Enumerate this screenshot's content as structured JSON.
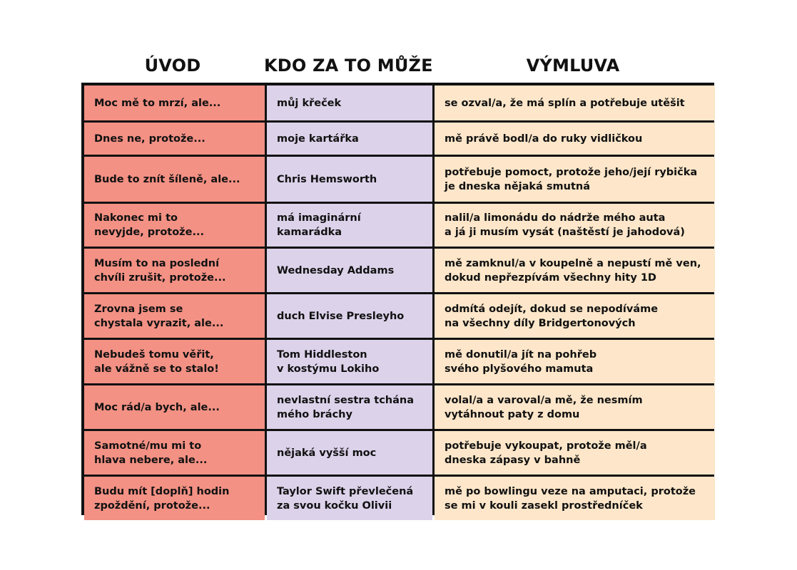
{
  "headers": {
    "intro": "ÚVOD",
    "who": "KDO ZA TO MŮŽE",
    "excuse": "VÝMLUVA"
  },
  "rows": [
    {
      "intro": "Moc mě to mrzí, ale...",
      "who": "můj křeček",
      "excuse": "se ozval/a, že má splín a potřebuje utěšit"
    },
    {
      "intro": "Dnes ne, protože...",
      "who": "moje kartářka",
      "excuse": "mě právě bodl/a do ruky vidličkou"
    },
    {
      "intro": "Bude to znít šíleně, ale...",
      "who": "Chris Hemsworth",
      "excuse": "potřebuje pomoct, protože jeho/její rybička\nje dneska nějaká smutná"
    },
    {
      "intro": "Nakonec mi to\nnevyjde, protože...",
      "who": "má imaginární\nkamarádka",
      "excuse": "nalil/a limonádu do nádrže mého auta\na já ji musím vysát (naštěstí je jahodová)"
    },
    {
      "intro": "Musím to na poslední\nchvíli zrušit, protože...",
      "who": "Wednesday Addams",
      "excuse": "mě zamknul/a v koupelně a nepustí mě ven,\ndokud nepřezpívám všechny hity 1D"
    },
    {
      "intro": "Zrovna jsem se\nchystala vyrazit, ale...",
      "who": "duch Elvise Presleyho",
      "excuse": "odmítá odejít, dokud se nepodíváme\nna všechny díly Bridgertonových"
    },
    {
      "intro": "Nebudeš tomu věřit,\nale vážně se to stalo!",
      "who": "Tom Hiddleston\nv kostýmu Lokiho",
      "excuse": "mě donutil/a jít na pohřeb\nsvého plyšového mamuta"
    },
    {
      "intro": "Moc rád/a bych, ale...",
      "who": "nevlastní sestra tchána\nmého bráchy",
      "excuse": "volal/a a varoval/a mě, že nesmím\nvytáhnout paty z domu"
    },
    {
      "intro": "Samotné/mu mi to\nhlava nebere, ale...",
      "who": "nějaká vyšší moc",
      "excuse": "potřebuje vykoupat, protože měl/a\ndneska zápasy v bahně"
    },
    {
      "intro": "Budu mít [doplň] hodin\nzpoždění, protože...",
      "who": "Taylor Swift převlečená\nza svou kočku Olivii",
      "excuse": "mě po bowlingu veze na amputaci, protože\nse mi v kouli zasekl prostředníček"
    }
  ],
  "colors": {
    "intro_column": "#f39184",
    "who_column": "#dcd2ea",
    "excuse_column": "#fde6c9",
    "border": "#111111"
  }
}
